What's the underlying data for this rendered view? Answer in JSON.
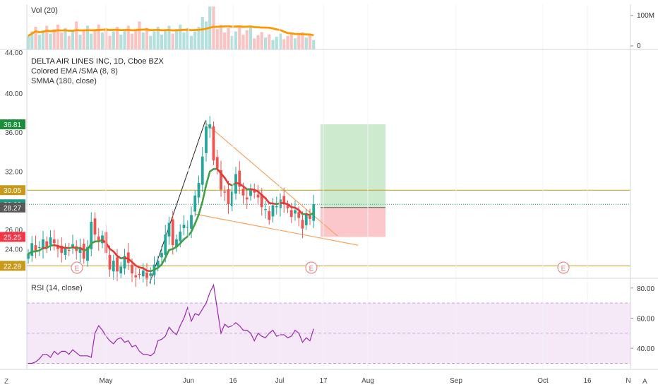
{
  "chart_data": [
    {
      "type": "bar",
      "title": "Vol (20)",
      "ylim": [
        0,
        150000000
      ],
      "y_tick_labels": [
        {
          "value": 100000000,
          "label": "100M"
        },
        {
          "value": 0,
          "label": "0"
        }
      ],
      "moving_average": "orange line"
    },
    {
      "type": "candlestick",
      "title": "DELTA AIR LINES INC, 1D, Cboe BZX",
      "indicators": [
        "Colored EMA /SMA (8, 8)",
        "SMMA (180, close)"
      ],
      "ylim": [
        21.0,
        44.5
      ],
      "y_ticks": [
        {
          "value": 40,
          "label": "40.00"
        },
        {
          "value": 36,
          "label": "36.00"
        },
        {
          "value": 32,
          "label": "32.00"
        },
        {
          "value": 26,
          "label": "26.00"
        },
        {
          "value": 24,
          "label": "24.00"
        }
      ],
      "price_tags": [
        {
          "value": 36.81,
          "label": "36.81",
          "color": "#1b8e3c"
        },
        {
          "value": 30.05,
          "label": "30.05",
          "color": "#c79a1c"
        },
        {
          "value": 28.6,
          "label": "28.60",
          "color": "#1f9c89"
        },
        {
          "value": 28.27,
          "label": "28.27",
          "color": "#575757"
        },
        {
          "value": 25.25,
          "label": "25.25",
          "color": "#f23645"
        },
        {
          "value": 22.28,
          "label": "22.28",
          "color": "#c79a1c"
        }
      ],
      "horizontal_lines": [
        30.05,
        22.28
      ],
      "earnings_markers": [
        "E",
        "E",
        "E"
      ],
      "long_position": {
        "entry": 28.27,
        "target": 36.81,
        "stop": 25.25
      },
      "colors": {
        "up": "#26a69a",
        "down": "#ef5350",
        "ema": "#43a047",
        "ema_down": "#e53935",
        "level": "#c79a1c",
        "trend": "#f7a35c"
      }
    },
    {
      "type": "line",
      "title": "RSI (14, close)",
      "ylim": [
        26,
        86
      ],
      "y_ticks": [
        {
          "value": 80,
          "label": "80.00"
        },
        {
          "value": 60,
          "label": "60.00"
        },
        {
          "value": 40,
          "label": "40.00"
        }
      ],
      "band": [
        30,
        70
      ],
      "values": [
        30,
        30,
        31,
        33,
        36,
        36,
        34,
        38,
        36,
        38,
        38,
        36,
        39,
        37,
        35,
        35,
        35,
        34,
        50,
        55,
        52,
        48,
        45,
        43,
        46,
        47,
        44,
        45,
        41,
        42,
        38,
        36,
        36,
        35,
        37,
        45,
        46,
        48,
        54,
        51,
        49,
        55,
        60,
        67,
        58,
        63,
        62,
        66,
        70,
        77,
        82,
        66,
        50,
        56,
        54,
        55,
        57,
        55,
        52,
        52,
        50,
        45,
        50,
        48,
        47,
        50,
        52,
        48,
        49,
        49,
        47,
        48,
        52,
        50,
        44,
        47,
        45,
        53
      ],
      "color": "#9c27b0"
    }
  ],
  "x_axis": {
    "labels": [
      "May",
      "Jun",
      "16",
      "Jul",
      "17",
      "Aug",
      "Sep",
      "Oct",
      "16",
      "N"
    ]
  },
  "footer": {
    "log_label": "A",
    "timezone_icon": "Z"
  }
}
